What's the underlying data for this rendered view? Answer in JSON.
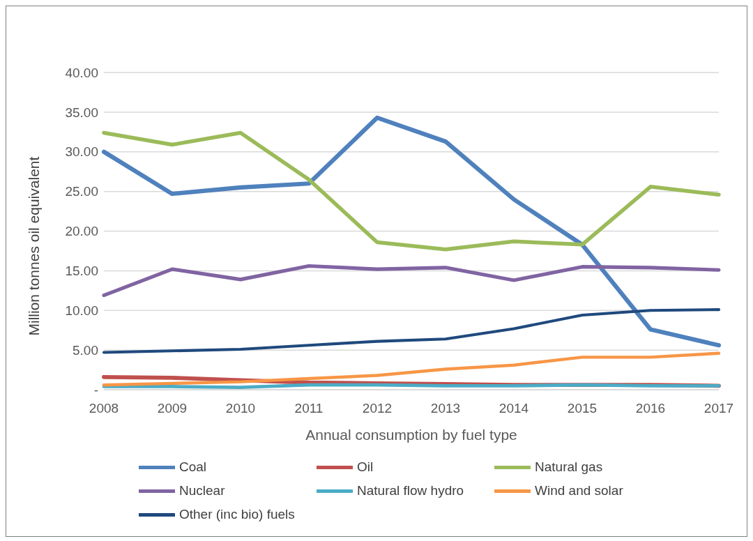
{
  "chart_data": {
    "type": "line",
    "xlabel": "Annual consumption by fuel type",
    "ylabel": "Million tonnes oil equivalent",
    "categories": [
      "2008",
      "2009",
      "2010",
      "2011",
      "2012",
      "2013",
      "2014",
      "2015",
      "2016",
      "2017"
    ],
    "ylim": [
      0,
      40
    ],
    "yticks": [
      {
        "value": 0,
        "label": "-"
      },
      {
        "value": 5,
        "label": "5.00"
      },
      {
        "value": 10,
        "label": "10.00"
      },
      {
        "value": 15,
        "label": "15.00"
      },
      {
        "value": 20,
        "label": "20.00"
      },
      {
        "value": 25,
        "label": "25.00"
      },
      {
        "value": 30,
        "label": "30.00"
      },
      {
        "value": 35,
        "label": "35.00"
      },
      {
        "value": 40,
        "label": "40.00"
      }
    ],
    "grid": "y",
    "legend": "bottom",
    "marker": "none",
    "line_style": "solid",
    "series": [
      {
        "name": "Coal",
        "color": "#4f81bd",
        "values": [
          30.0,
          24.7,
          25.5,
          26.0,
          34.3,
          31.3,
          24.0,
          18.3,
          7.6,
          5.6
        ]
      },
      {
        "name": "Oil",
        "color": "#c0504d",
        "values": [
          1.6,
          1.5,
          1.2,
          0.9,
          0.8,
          0.7,
          0.6,
          0.6,
          0.6,
          0.5
        ]
      },
      {
        "name": "Natural gas",
        "color": "#9bbb59",
        "values": [
          32.4,
          30.9,
          32.4,
          26.5,
          18.6,
          17.7,
          18.7,
          18.3,
          25.6,
          24.6
        ]
      },
      {
        "name": "Nuclear",
        "color": "#8064a2",
        "values": [
          11.9,
          15.2,
          13.9,
          15.6,
          15.2,
          15.4,
          13.8,
          15.5,
          15.4,
          15.1
        ]
      },
      {
        "name": "Natural flow hydro",
        "color": "#4bacc6",
        "values": [
          0.4,
          0.4,
          0.3,
          0.6,
          0.6,
          0.5,
          0.5,
          0.6,
          0.5,
          0.5
        ]
      },
      {
        "name": "Wind and solar",
        "color": "#f79646",
        "values": [
          0.6,
          0.8,
          1.0,
          1.4,
          1.8,
          2.6,
          3.1,
          4.1,
          4.1,
          4.6
        ]
      },
      {
        "name": "Other (inc bio) fuels",
        "color": "#1f497d",
        "values": [
          4.7,
          4.9,
          5.1,
          5.6,
          6.1,
          6.4,
          7.7,
          9.4,
          10.0,
          10.1
        ]
      }
    ]
  }
}
